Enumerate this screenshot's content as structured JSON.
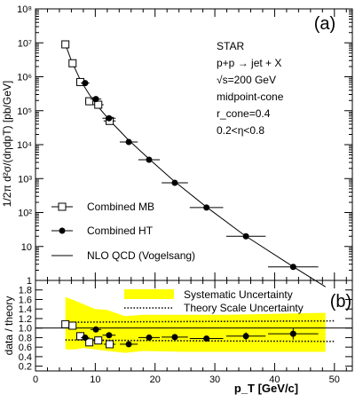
{
  "chart_data": [
    {
      "panel": "(a)",
      "type": "scatter",
      "ylabel": "1/2π d²σ/(dηdpT) [pb/GeV]",
      "yscale": "log",
      "xlim": [
        0,
        53
      ],
      "ylim_log10": [
        0,
        8
      ],
      "ytick_labels": [
        "1",
        "10",
        "10²",
        "10³",
        "10⁴",
        "10⁵",
        "10⁶",
        "10⁷",
        "10⁸"
      ],
      "info_lines": [
        "STAR",
        "p+p → jet + X",
        "√s=200  GeV",
        "midpoint-cone",
        "r_cone=0.4",
        "0.2<η<0.8"
      ],
      "series": [
        {
          "name": "Combined MB",
          "marker": "open-square",
          "points": [
            {
              "x": 5.0,
              "y": 9000000.0,
              "xerr": 0.5
            },
            {
              "x": 6.2,
              "y": 2500000.0,
              "xerr": 0.5
            },
            {
              "x": 7.5,
              "y": 700000.0,
              "xerr": 0.6
            },
            {
              "x": 9.0,
              "y": 190000.0,
              "xerr": 0.7
            },
            {
              "x": 10.5,
              "y": 150000.0,
              "xerr": 0.9
            },
            {
              "x": 12.4,
              "y": 50000.0,
              "xerr": 1.0
            }
          ]
        },
        {
          "name": "Combined HT",
          "marker": "filled-circle",
          "points": [
            {
              "x": 8.3,
              "y": 650000.0,
              "xerr": 0.7
            },
            {
              "x": 10.1,
              "y": 220000.0,
              "xerr": 0.9
            },
            {
              "x": 12.3,
              "y": 60000.0,
              "xerr": 1.1
            },
            {
              "x": 15.6,
              "y": 12000.0,
              "xerr": 1.5
            },
            {
              "x": 19.0,
              "y": 3600.0,
              "xerr": 1.8
            },
            {
              "x": 23.3,
              "y": 750.0,
              "xerr": 2.2
            },
            {
              "x": 28.6,
              "y": 140.0,
              "xerr": 2.8
            },
            {
              "x": 35.2,
              "y": 20.0,
              "xerr": 3.3
            },
            {
              "x": 43.1,
              "y": 2.5,
              "xerr": 4.2
            }
          ]
        },
        {
          "name": "NLO QCD (Vogelsang)",
          "marker": "line",
          "points": [
            {
              "x": 5.0,
              "y": 9000000.0
            },
            {
              "x": 6.0,
              "y": 3000000.0
            },
            {
              "x": 7.5,
              "y": 800000.0
            },
            {
              "x": 9.0,
              "y": 300000.0
            },
            {
              "x": 10.5,
              "y": 130000.0
            },
            {
              "x": 12.5,
              "y": 50000.0
            },
            {
              "x": 15.5,
              "y": 14000.0
            },
            {
              "x": 19.0,
              "y": 3800.0
            },
            {
              "x": 23.0,
              "y": 900.0
            },
            {
              "x": 28.5,
              "y": 150.0
            },
            {
              "x": 35.0,
              "y": 21.0
            },
            {
              "x": 43.0,
              "y": 2.6
            },
            {
              "x": 48.5,
              "y": 0.65
            }
          ]
        }
      ]
    },
    {
      "panel": "(b)",
      "type": "scatter",
      "ylabel": "data / theory",
      "xlabel": "p_T  [GeV/c]",
      "xlim": [
        0,
        53
      ],
      "ylim": [
        0.1,
        2.0
      ],
      "xtick_labels": [
        "0",
        "10",
        "20",
        "30",
        "40",
        "50"
      ],
      "ytick_labels": [
        "0.2",
        "0.4",
        "0.6",
        "0.8",
        "1.0",
        "1.2",
        "1.4",
        "1.6",
        "1.8"
      ],
      "series": [
        {
          "name": "Systematic Uncertainty",
          "marker": "band",
          "color": "#ffff00",
          "points": [
            {
              "x": 5.0,
              "low": 0.55,
              "high": 1.65
            },
            {
              "x": 6.5,
              "low": 0.55,
              "high": 1.58
            },
            {
              "x": 8.0,
              "low": 0.58,
              "high": 1.5
            },
            {
              "x": 10.0,
              "low": 0.55,
              "high": 1.4
            },
            {
              "x": 12.0,
              "low": 0.52,
              "high": 1.38
            },
            {
              "x": 15.0,
              "low": 0.48,
              "high": 1.25
            },
            {
              "x": 18.0,
              "low": 0.52,
              "high": 1.28
            },
            {
              "x": 25.0,
              "low": 0.5,
              "high": 1.28
            },
            {
              "x": 32.0,
              "low": 0.5,
              "high": 1.28
            },
            {
              "x": 40.0,
              "low": 0.5,
              "high": 1.3
            },
            {
              "x": 48.5,
              "low": 0.5,
              "high": 1.32
            }
          ]
        },
        {
          "name": "Theory Scale Uncertainty",
          "marker": "dotted",
          "points": [
            {
              "x": 5.0,
              "low": 0.75,
              "high": 1.12
            },
            {
              "x": 15.0,
              "low": 0.74,
              "high": 1.13
            },
            {
              "x": 30.0,
              "low": 0.73,
              "high": 1.14
            },
            {
              "x": 50.0,
              "low": 0.72,
              "high": 1.15
            }
          ]
        },
        {
          "name": "Combined MB",
          "marker": "open-square",
          "points": [
            {
              "x": 5.0,
              "y": 1.08,
              "xerr": 0.5
            },
            {
              "x": 6.2,
              "y": 1.05,
              "xerr": 0.5
            },
            {
              "x": 7.5,
              "y": 0.83,
              "xerr": 0.6
            },
            {
              "x": 9.0,
              "y": 0.7,
              "xerr": 0.7
            },
            {
              "x": 10.5,
              "y": 0.74,
              "xerr": 0.9
            },
            {
              "x": 12.4,
              "y": 0.66,
              "xerr": 1.0
            }
          ]
        },
        {
          "name": "Combined HT",
          "marker": "filled-circle",
          "points": [
            {
              "x": 8.3,
              "y": 0.8,
              "xerr": 0.7,
              "yerr": 0.04
            },
            {
              "x": 10.1,
              "y": 0.97,
              "xerr": 0.9,
              "yerr": 0.05
            },
            {
              "x": 12.3,
              "y": 0.85,
              "xerr": 1.1,
              "yerr": 0.05
            },
            {
              "x": 15.6,
              "y": 0.66,
              "xerr": 1.5,
              "yerr": 0.05
            },
            {
              "x": 19.0,
              "y": 0.8,
              "xerr": 1.8,
              "yerr": 0.05
            },
            {
              "x": 23.3,
              "y": 0.81,
              "xerr": 2.2,
              "yerr": 0.05
            },
            {
              "x": 28.6,
              "y": 0.78,
              "xerr": 2.8,
              "yerr": 0.06
            },
            {
              "x": 35.2,
              "y": 0.83,
              "xerr": 3.3,
              "yerr": 0.08
            },
            {
              "x": 43.1,
              "y": 0.88,
              "xerr": 4.2,
              "yerr": 0.12
            }
          ]
        }
      ]
    }
  ]
}
